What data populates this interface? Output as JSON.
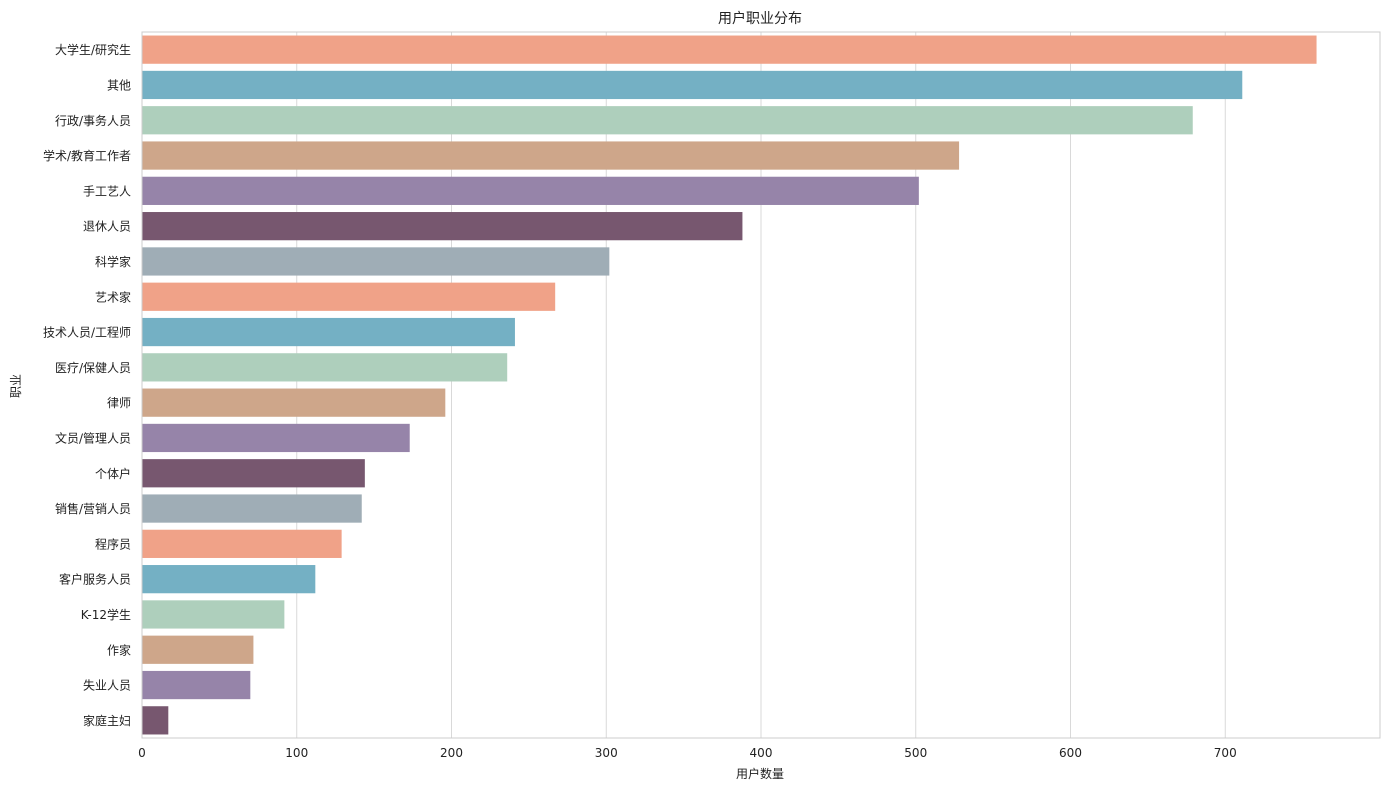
{
  "chart_data": {
    "type": "bar",
    "orientation": "horizontal",
    "title": "用户职业分布",
    "xlabel": "用户数量",
    "ylabel": "职业",
    "xlim": [
      0,
      800
    ],
    "xticks": [
      0,
      100,
      200,
      300,
      400,
      500,
      600,
      700
    ],
    "grid": "vertical",
    "legend": "none",
    "categories": [
      "大学生/研究生",
      "其他",
      "行政/事务人员",
      "学术/教育工作者",
      "手工艺人",
      "退休人员",
      "科学家",
      "艺术家",
      "技术人员/工程师",
      "医疗/保健人员",
      "律师",
      "文员/管理人员",
      "个体户",
      "销售/营销人员",
      "程序员",
      "客户服务人员",
      "K-12学生",
      "作家",
      "失业人员",
      "家庭主妇"
    ],
    "values": [
      759,
      711,
      679,
      528,
      502,
      388,
      302,
      267,
      241,
      236,
      196,
      173,
      144,
      142,
      129,
      112,
      92,
      72,
      70,
      17
    ],
    "palette": [
      "#f0a288",
      "#74b0c4",
      "#aecfbc",
      "#cea68a",
      "#9684a9",
      "#77576f",
      "#9fadb6"
    ]
  }
}
